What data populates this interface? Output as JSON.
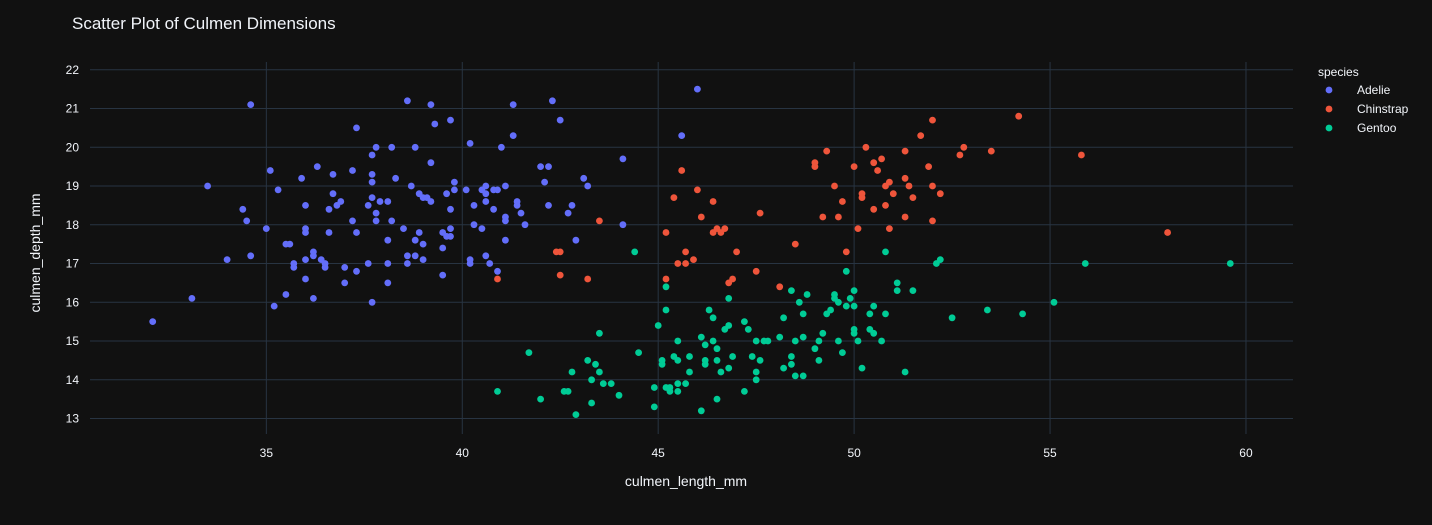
{
  "chart_data": {
    "type": "scatter",
    "title": "Scatter Plot of Culmen Dimensions",
    "xlabel": "culmen_length_mm",
    "ylabel": "culmen_depth_mm",
    "xlim": [
      30.5,
      61.2
    ],
    "ylim": [
      12.6,
      22.2
    ],
    "xticks": [
      35,
      40,
      45,
      50,
      55,
      60
    ],
    "yticks": [
      13,
      14,
      15,
      16,
      17,
      18,
      19,
      20,
      21,
      22
    ],
    "grid": true,
    "legend_title": "species",
    "legend_position": "right",
    "series": [
      {
        "name": "Adelie",
        "color": "#636efa",
        "points": [
          [
            32.1,
            15.5
          ],
          [
            33.1,
            16.1
          ],
          [
            33.5,
            19.0
          ],
          [
            34.0,
            17.1
          ],
          [
            34.4,
            18.4
          ],
          [
            34.5,
            18.1
          ],
          [
            34.6,
            21.1
          ],
          [
            34.6,
            17.2
          ],
          [
            35.0,
            17.9
          ],
          [
            35.1,
            19.4
          ],
          [
            35.2,
            15.9
          ],
          [
            35.3,
            18.9
          ],
          [
            35.5,
            17.5
          ],
          [
            35.5,
            16.2
          ],
          [
            35.6,
            17.5
          ],
          [
            35.7,
            16.9
          ],
          [
            35.7,
            17.0
          ],
          [
            35.9,
            19.2
          ],
          [
            36.0,
            18.5
          ],
          [
            36.0,
            17.9
          ],
          [
            36.0,
            17.8
          ],
          [
            36.0,
            16.6
          ],
          [
            36.0,
            17.1
          ],
          [
            36.2,
            17.3
          ],
          [
            36.2,
            17.2
          ],
          [
            36.2,
            16.1
          ],
          [
            36.3,
            19.5
          ],
          [
            36.4,
            17.1
          ],
          [
            36.5,
            16.9
          ],
          [
            36.5,
            17.0
          ],
          [
            36.6,
            18.4
          ],
          [
            36.6,
            17.8
          ],
          [
            36.7,
            18.8
          ],
          [
            36.7,
            19.3
          ],
          [
            36.8,
            18.5
          ],
          [
            36.9,
            18.6
          ],
          [
            37.0,
            16.5
          ],
          [
            37.0,
            16.9
          ],
          [
            37.2,
            18.1
          ],
          [
            37.2,
            19.4
          ],
          [
            37.3,
            20.5
          ],
          [
            37.3,
            16.8
          ],
          [
            37.3,
            17.8
          ],
          [
            37.6,
            17.0
          ],
          [
            37.6,
            18.5
          ],
          [
            37.7,
            18.7
          ],
          [
            37.7,
            19.8
          ],
          [
            37.7,
            16.0
          ],
          [
            37.7,
            19.1
          ],
          [
            37.7,
            19.3
          ],
          [
            37.8,
            18.1
          ],
          [
            37.8,
            18.3
          ],
          [
            37.8,
            20.0
          ],
          [
            37.9,
            18.6
          ],
          [
            38.1,
            18.6
          ],
          [
            38.1,
            17.6
          ],
          [
            38.1,
            16.5
          ],
          [
            38.1,
            17.0
          ],
          [
            38.2,
            20.0
          ],
          [
            38.2,
            18.1
          ],
          [
            38.3,
            19.2
          ],
          [
            38.5,
            17.9
          ],
          [
            38.6,
            21.2
          ],
          [
            38.6,
            17.2
          ],
          [
            38.6,
            17.0
          ],
          [
            38.7,
            19.0
          ],
          [
            38.8,
            17.2
          ],
          [
            38.8,
            20.0
          ],
          [
            38.8,
            17.6
          ],
          [
            38.9,
            18.8
          ],
          [
            38.9,
            17.8
          ],
          [
            39.0,
            17.1
          ],
          [
            39.0,
            18.7
          ],
          [
            39.0,
            17.5
          ],
          [
            39.1,
            18.7
          ],
          [
            39.2,
            19.6
          ],
          [
            39.2,
            18.6
          ],
          [
            39.2,
            21.1
          ],
          [
            39.3,
            20.6
          ],
          [
            39.5,
            17.4
          ],
          [
            39.5,
            16.7
          ],
          [
            39.5,
            17.8
          ],
          [
            39.6,
            17.7
          ],
          [
            39.6,
            18.8
          ],
          [
            39.7,
            18.4
          ],
          [
            39.7,
            17.9
          ],
          [
            39.7,
            17.7
          ],
          [
            39.7,
            20.7
          ],
          [
            39.8,
            19.1
          ],
          [
            39.8,
            18.9
          ],
          [
            40.1,
            18.9
          ],
          [
            40.2,
            20.1
          ],
          [
            40.2,
            17.0
          ],
          [
            40.2,
            17.1
          ],
          [
            40.3,
            18.5
          ],
          [
            40.3,
            18.0
          ],
          [
            40.5,
            18.9
          ],
          [
            40.5,
            17.9
          ],
          [
            40.6,
            18.6
          ],
          [
            40.6,
            19.0
          ],
          [
            40.6,
            18.8
          ],
          [
            40.6,
            17.2
          ],
          [
            40.7,
            17.0
          ],
          [
            40.8,
            18.4
          ],
          [
            40.8,
            18.9
          ],
          [
            40.9,
            18.9
          ],
          [
            40.9,
            16.8
          ],
          [
            41.0,
            20.0
          ],
          [
            41.1,
            18.1
          ],
          [
            41.1,
            18.2
          ],
          [
            41.1,
            17.6
          ],
          [
            41.1,
            19.0
          ],
          [
            41.3,
            21.1
          ],
          [
            41.3,
            20.3
          ],
          [
            41.4,
            18.5
          ],
          [
            41.4,
            18.6
          ],
          [
            41.5,
            18.3
          ],
          [
            41.6,
            18.0
          ],
          [
            42.0,
            19.5
          ],
          [
            42.1,
            19.1
          ],
          [
            42.2,
            18.5
          ],
          [
            42.2,
            19.5
          ],
          [
            42.3,
            21.2
          ],
          [
            42.5,
            20.7
          ],
          [
            42.7,
            18.3
          ],
          [
            42.8,
            18.5
          ],
          [
            42.9,
            17.6
          ],
          [
            43.1,
            19.2
          ],
          [
            43.2,
            19.0
          ],
          [
            44.1,
            19.7
          ],
          [
            44.1,
            18.0
          ],
          [
            45.6,
            20.3
          ],
          [
            46.0,
            21.5
          ]
        ]
      },
      {
        "name": "Chinstrap",
        "color": "#ef553b",
        "points": [
          [
            40.9,
            16.6
          ],
          [
            42.4,
            17.3
          ],
          [
            42.5,
            17.3
          ],
          [
            42.5,
            16.7
          ],
          [
            43.2,
            16.6
          ],
          [
            43.5,
            18.1
          ],
          [
            45.2,
            17.8
          ],
          [
            45.2,
            16.6
          ],
          [
            45.4,
            18.7
          ],
          [
            45.5,
            17.0
          ],
          [
            45.6,
            19.4
          ],
          [
            45.7,
            17.3
          ],
          [
            45.7,
            17.0
          ],
          [
            45.9,
            17.1
          ],
          [
            46.0,
            18.9
          ],
          [
            46.1,
            18.2
          ],
          [
            46.4,
            17.8
          ],
          [
            46.4,
            18.6
          ],
          [
            46.5,
            17.9
          ],
          [
            46.6,
            17.8
          ],
          [
            46.7,
            17.9
          ],
          [
            46.8,
            16.5
          ],
          [
            46.9,
            16.6
          ],
          [
            47.0,
            17.3
          ],
          [
            47.5,
            16.8
          ],
          [
            47.6,
            18.3
          ],
          [
            48.1,
            16.4
          ],
          [
            48.5,
            17.5
          ],
          [
            49.0,
            19.5
          ],
          [
            49.0,
            19.6
          ],
          [
            49.2,
            18.2
          ],
          [
            49.3,
            19.9
          ],
          [
            49.5,
            19.0
          ],
          [
            49.6,
            18.2
          ],
          [
            49.7,
            18.6
          ],
          [
            49.8,
            17.3
          ],
          [
            50.0,
            19.5
          ],
          [
            50.1,
            17.9
          ],
          [
            50.2,
            18.8
          ],
          [
            50.2,
            18.7
          ],
          [
            50.3,
            20.0
          ],
          [
            50.5,
            19.6
          ],
          [
            50.5,
            18.4
          ],
          [
            50.6,
            19.4
          ],
          [
            50.7,
            19.7
          ],
          [
            50.8,
            19.0
          ],
          [
            50.8,
            18.5
          ],
          [
            50.9,
            19.1
          ],
          [
            50.9,
            17.9
          ],
          [
            51.0,
            18.8
          ],
          [
            51.3,
            19.9
          ],
          [
            51.3,
            19.2
          ],
          [
            51.3,
            18.2
          ],
          [
            51.4,
            19.0
          ],
          [
            51.5,
            18.7
          ],
          [
            51.7,
            20.3
          ],
          [
            51.9,
            19.5
          ],
          [
            52.0,
            18.1
          ],
          [
            52.0,
            19.0
          ],
          [
            52.0,
            20.7
          ],
          [
            52.2,
            18.8
          ],
          [
            52.7,
            19.8
          ],
          [
            52.8,
            20.0
          ],
          [
            53.5,
            19.9
          ],
          [
            54.2,
            20.8
          ],
          [
            55.8,
            19.8
          ],
          [
            58.0,
            17.8
          ]
        ]
      },
      {
        "name": "Gentoo",
        "color": "#00cc96",
        "points": [
          [
            40.9,
            13.7
          ],
          [
            41.7,
            14.7
          ],
          [
            42.0,
            13.5
          ],
          [
            42.6,
            13.7
          ],
          [
            42.7,
            13.7
          ],
          [
            42.8,
            14.2
          ],
          [
            42.9,
            13.1
          ],
          [
            43.2,
            14.5
          ],
          [
            43.3,
            14.0
          ],
          [
            43.3,
            13.4
          ],
          [
            43.4,
            14.4
          ],
          [
            43.5,
            14.2
          ],
          [
            43.5,
            15.2
          ],
          [
            43.6,
            13.9
          ],
          [
            43.8,
            13.9
          ],
          [
            44.0,
            13.6
          ],
          [
            44.4,
            17.3
          ],
          [
            44.5,
            14.7
          ],
          [
            44.9,
            13.3
          ],
          [
            44.9,
            13.8
          ],
          [
            45.0,
            15.4
          ],
          [
            45.1,
            14.5
          ],
          [
            45.1,
            14.4
          ],
          [
            45.2,
            16.4
          ],
          [
            45.2,
            15.8
          ],
          [
            45.2,
            13.8
          ],
          [
            45.3,
            13.7
          ],
          [
            45.3,
            13.8
          ],
          [
            45.4,
            14.6
          ],
          [
            45.5,
            13.7
          ],
          [
            45.5,
            13.9
          ],
          [
            45.5,
            14.5
          ],
          [
            45.5,
            15.0
          ],
          [
            45.7,
            13.9
          ],
          [
            45.8,
            14.2
          ],
          [
            45.8,
            14.6
          ],
          [
            46.1,
            13.2
          ],
          [
            46.1,
            15.1
          ],
          [
            46.2,
            14.5
          ],
          [
            46.2,
            14.4
          ],
          [
            46.2,
            14.9
          ],
          [
            46.3,
            15.8
          ],
          [
            46.4,
            15.6
          ],
          [
            46.4,
            15.0
          ],
          [
            46.5,
            14.5
          ],
          [
            46.5,
            14.8
          ],
          [
            46.5,
            13.5
          ],
          [
            46.6,
            14.2
          ],
          [
            46.7,
            15.3
          ],
          [
            46.8,
            14.3
          ],
          [
            46.8,
            15.4
          ],
          [
            46.8,
            16.1
          ],
          [
            46.9,
            14.6
          ],
          [
            47.2,
            13.7
          ],
          [
            47.2,
            15.5
          ],
          [
            47.3,
            15.3
          ],
          [
            47.4,
            14.6
          ],
          [
            47.5,
            14.2
          ],
          [
            47.5,
            14.0
          ],
          [
            47.5,
            15.0
          ],
          [
            47.6,
            14.5
          ],
          [
            47.7,
            15.0
          ],
          [
            47.8,
            15.0
          ],
          [
            48.1,
            15.1
          ],
          [
            48.2,
            14.3
          ],
          [
            48.2,
            15.6
          ],
          [
            48.4,
            14.4
          ],
          [
            48.4,
            16.3
          ],
          [
            48.4,
            14.6
          ],
          [
            48.5,
            14.1
          ],
          [
            48.5,
            15.0
          ],
          [
            48.6,
            16.0
          ],
          [
            48.7,
            14.1
          ],
          [
            48.7,
            15.1
          ],
          [
            48.7,
            15.7
          ],
          [
            48.8,
            16.2
          ],
          [
            49.0,
            14.8
          ],
          [
            49.1,
            14.5
          ],
          [
            49.1,
            15.0
          ],
          [
            49.2,
            15.2
          ],
          [
            49.3,
            15.7
          ],
          [
            49.4,
            15.8
          ],
          [
            49.5,
            16.1
          ],
          [
            49.5,
            16.2
          ],
          [
            49.6,
            16.0
          ],
          [
            49.6,
            15.0
          ],
          [
            49.7,
            14.7
          ],
          [
            49.8,
            15.9
          ],
          [
            49.8,
            16.8
          ],
          [
            49.9,
            16.1
          ],
          [
            50.0,
            15.2
          ],
          [
            50.0,
            15.3
          ],
          [
            50.0,
            16.3
          ],
          [
            50.0,
            15.9
          ],
          [
            50.1,
            15.0
          ],
          [
            50.2,
            14.3
          ],
          [
            50.4,
            15.3
          ],
          [
            50.4,
            15.7
          ],
          [
            50.5,
            15.2
          ],
          [
            50.5,
            15.9
          ],
          [
            50.7,
            15.0
          ],
          [
            50.8,
            17.3
          ],
          [
            50.8,
            15.7
          ],
          [
            51.1,
            16.5
          ],
          [
            51.1,
            16.3
          ],
          [
            51.3,
            14.2
          ],
          [
            51.5,
            16.3
          ],
          [
            52.1,
            17.0
          ],
          [
            52.2,
            17.1
          ],
          [
            52.5,
            15.6
          ],
          [
            53.4,
            15.8
          ],
          [
            54.3,
            15.7
          ],
          [
            55.1,
            16.0
          ],
          [
            55.9,
            17.0
          ],
          [
            59.6,
            17.0
          ]
        ]
      }
    ]
  }
}
